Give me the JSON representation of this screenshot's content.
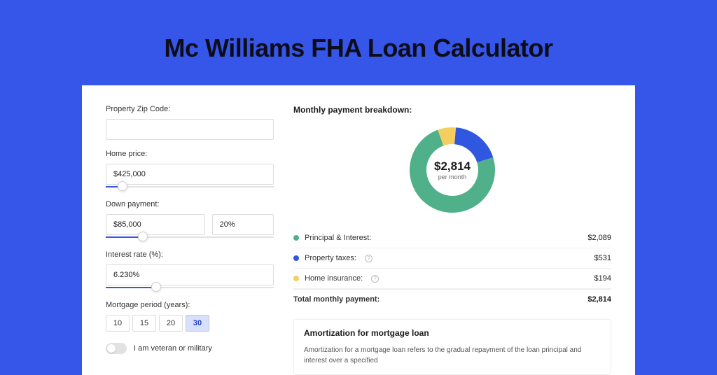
{
  "page": {
    "title": "Mc Williams FHA Loan Calculator",
    "background_color": "#3556e8",
    "card_bg": "#ffffff"
  },
  "form": {
    "zip": {
      "label": "Property Zip Code:",
      "value": ""
    },
    "home_price": {
      "label": "Home price:",
      "value": "$425,000",
      "slider_pct": 10
    },
    "down_payment": {
      "label": "Down payment:",
      "amount": "$85,000",
      "percent": "20%",
      "slider_pct": 22
    },
    "interest": {
      "label": "Interest rate (%):",
      "value": "6.230%",
      "slider_pct": 30
    },
    "period": {
      "label": "Mortgage period (years):",
      "options": [
        "10",
        "15",
        "20",
        "30"
      ],
      "selected": "30"
    },
    "veteran": {
      "label": "I am veteran or military",
      "on": false
    }
  },
  "chart": {
    "title": "Monthly payment breakdown:",
    "center_amount": "$2,814",
    "center_sub": "per month",
    "type": "donut",
    "thickness": 24,
    "slices": [
      {
        "label": "Principal & Interest:",
        "value": "$2,089",
        "pct": 74.2,
        "color": "#4fb08a",
        "has_info": false
      },
      {
        "label": "Property taxes:",
        "value": "$531",
        "pct": 18.9,
        "color": "#2f57e0",
        "has_info": true
      },
      {
        "label": "Home insurance:",
        "value": "$194",
        "pct": 6.9,
        "color": "#f4cf5f",
        "has_info": true
      }
    ],
    "total": {
      "label": "Total monthly payment:",
      "value": "$2,814"
    }
  },
  "amortization": {
    "title": "Amortization for mortgage loan",
    "body": "Amortization for a mortgage loan refers to the gradual repayment of the loan principal and interest over a specified"
  }
}
